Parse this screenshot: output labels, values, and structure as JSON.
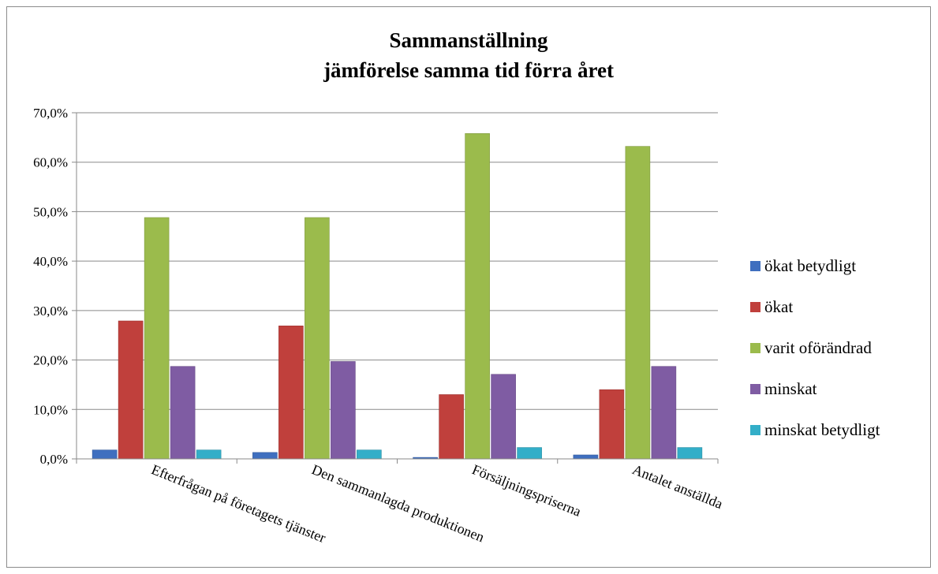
{
  "chart_data": {
    "type": "bar",
    "title": [
      "Sammanställning",
      "jämförelse samma tid förra året"
    ],
    "xlabel": "",
    "ylabel": "",
    "ylim": [
      0,
      70
    ],
    "y_ticks": [
      "0,0%",
      "10,0%",
      "20,0%",
      "30,0%",
      "40,0%",
      "50,0%",
      "60,0%",
      "70,0%"
    ],
    "grid": true,
    "legend_position": "right",
    "categories": [
      "Efterfrågan på företagets tjänster",
      "Den sammanlagda produktionen",
      "Försäljningspriserna",
      "Antalet anställda"
    ],
    "series": [
      {
        "name": "ökat betydligt",
        "color": "#3f6fbf",
        "values": [
          1.8,
          1.3,
          0.3,
          0.8
        ]
      },
      {
        "name": "ökat",
        "color": "#c0403c",
        "values": [
          27.9,
          26.9,
          13.0,
          14.0
        ]
      },
      {
        "name": "varit oförändrad",
        "color": "#9bbb4c",
        "values": [
          48.8,
          48.8,
          65.8,
          63.2
        ]
      },
      {
        "name": "minskat",
        "color": "#7f5ca3",
        "values": [
          18.7,
          19.7,
          17.1,
          18.7
        ]
      },
      {
        "name": "minskat betydligt",
        "color": "#33aec8",
        "values": [
          1.8,
          1.8,
          2.3,
          2.3
        ]
      }
    ]
  }
}
